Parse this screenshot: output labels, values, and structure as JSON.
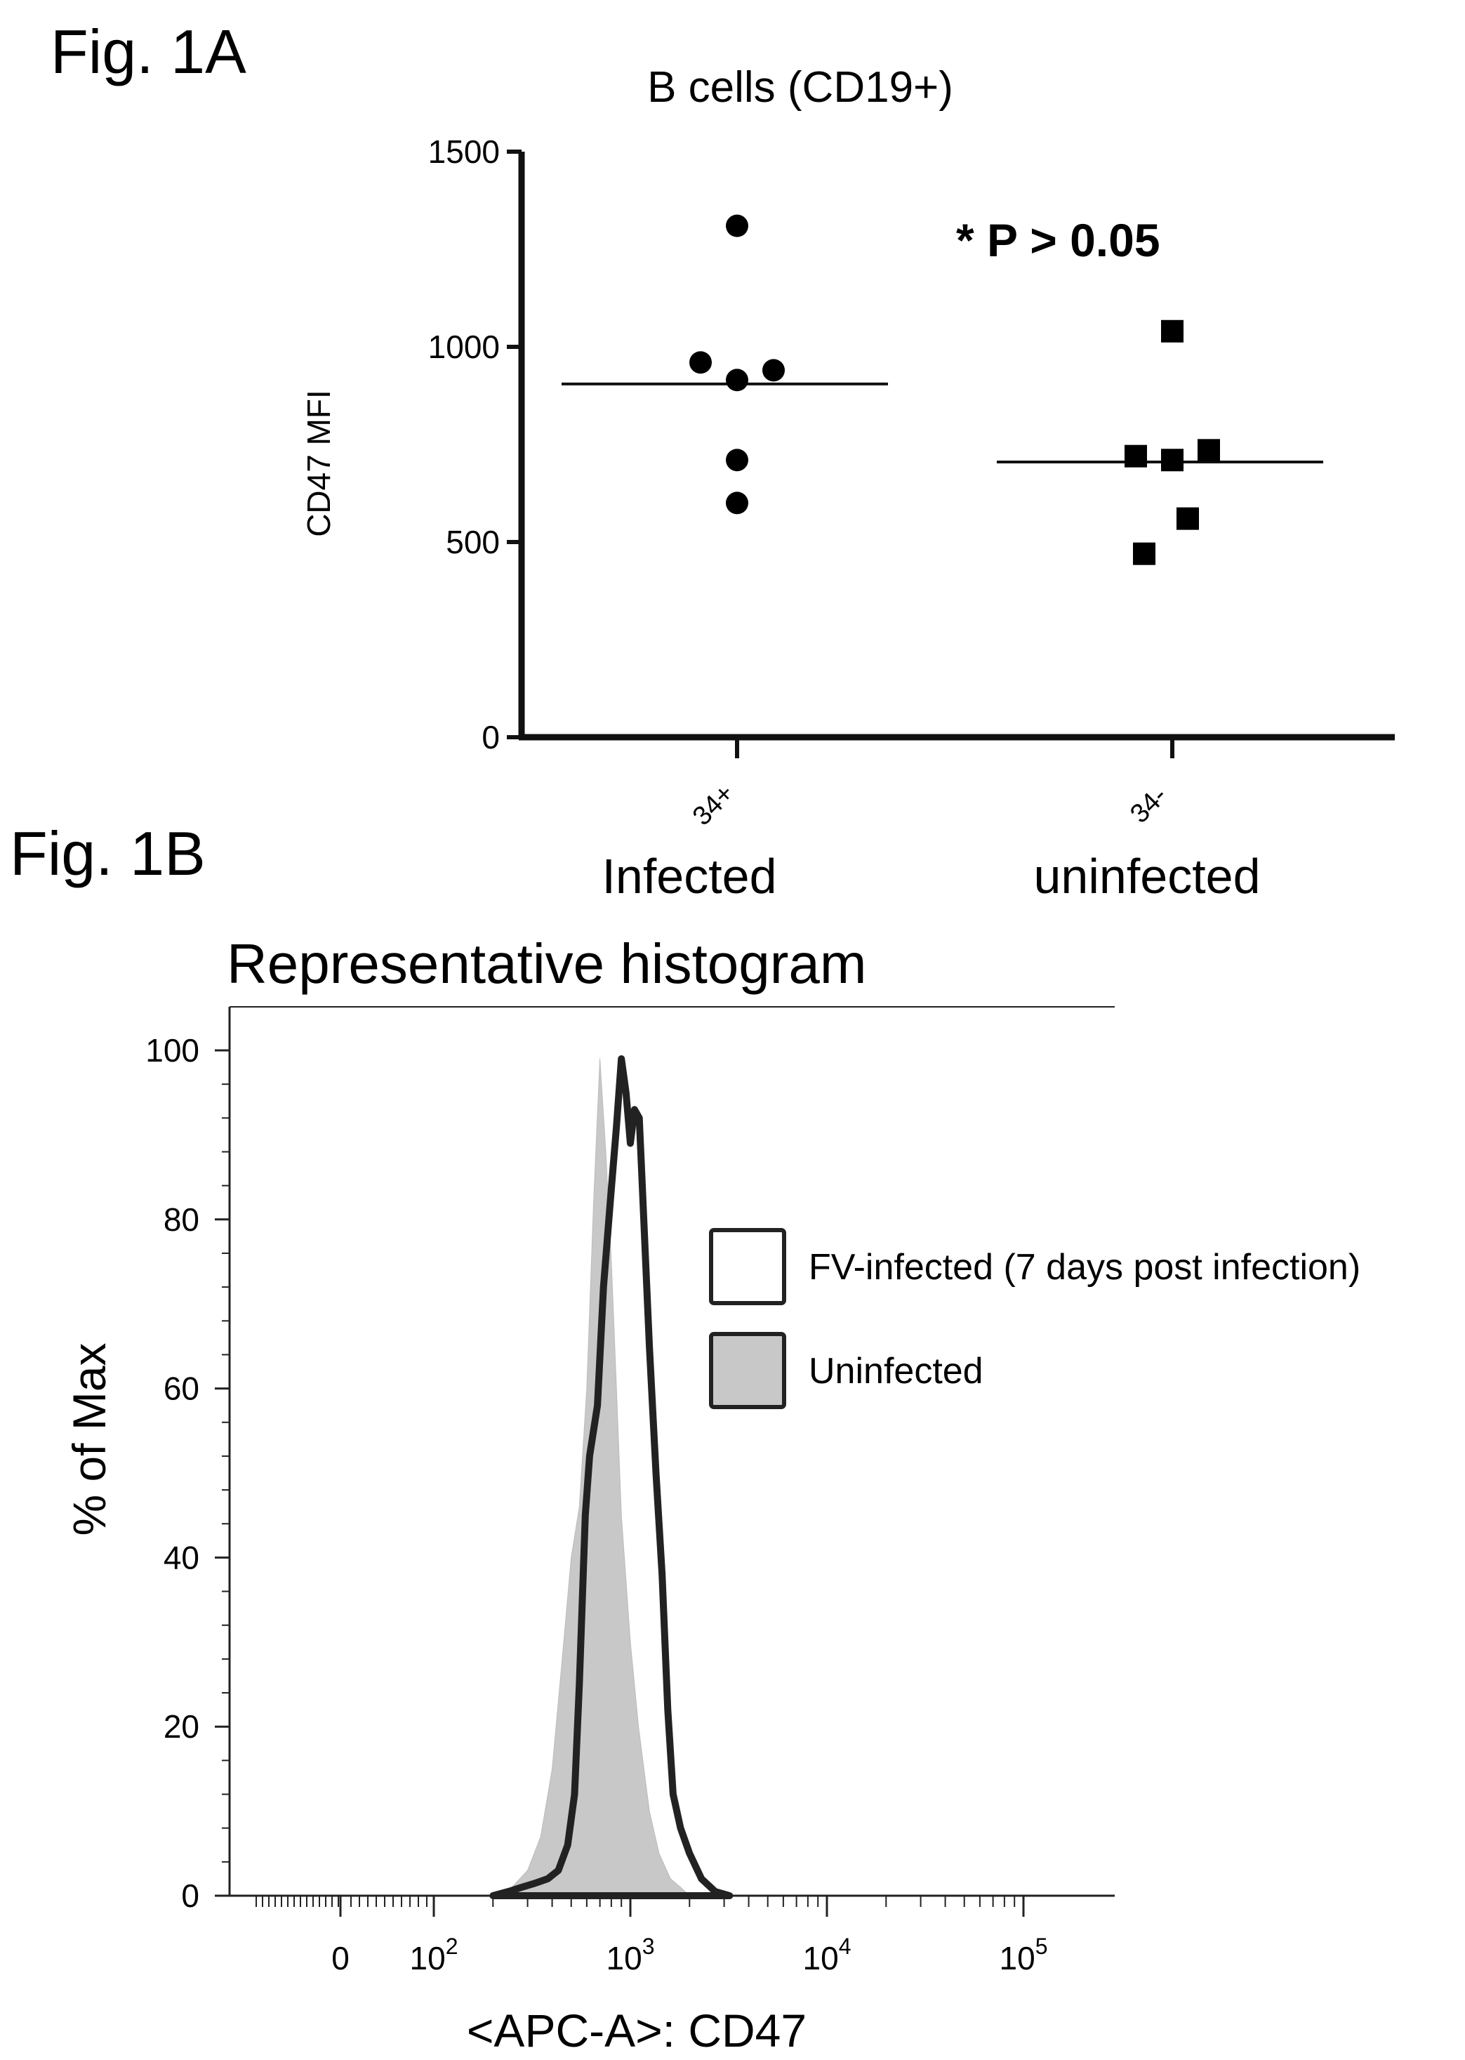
{
  "figure": {
    "fig1a_label": "Fig. 1A",
    "fig1b_label": "Fig. 1B"
  },
  "chart_data": [
    {
      "type": "scatter",
      "title": "B cells (CD19+)",
      "ylabel": "CD47 MFI",
      "xlabel": "",
      "ylim": [
        0,
        1500
      ],
      "yticks": [
        "0",
        "500",
        "1000",
        "1500"
      ],
      "annotation": "* P > 0.05",
      "categories": [
        "34+",
        "34-"
      ],
      "group_labels": [
        "Infected",
        "uninfected"
      ],
      "series": [
        {
          "category": "34+",
          "marker": "circle",
          "values": [
            1310,
            960,
            940,
            915,
            710,
            600
          ],
          "median": 905
        },
        {
          "category": "34-",
          "marker": "square",
          "values": [
            1040,
            735,
            720,
            710,
            560,
            470
          ],
          "median": 705
        }
      ]
    },
    {
      "type": "area",
      "title": "Representative histogram",
      "ylabel": "% of Max",
      "xlabel": "<APC-A>: CD47",
      "ylim": [
        0,
        100
      ],
      "x_scale": "biexponential",
      "yticks": [
        "0",
        "20",
        "40",
        "60",
        "80",
        "100"
      ],
      "xticks": [
        {
          "base": "0",
          "exp": ""
        },
        {
          "base": "10",
          "exp": "2"
        },
        {
          "base": "10",
          "exp": "3"
        },
        {
          "base": "10",
          "exp": "4"
        },
        {
          "base": "10",
          "exp": "5"
        }
      ],
      "legend_position": "right",
      "series": [
        {
          "name": "FV-infected (7 days post infection)",
          "fill": "#ffffff",
          "stroke": "#222222",
          "points": [
            [
              200,
              0
            ],
            [
              240,
              0.5
            ],
            [
              280,
              1
            ],
            [
              330,
              1.5
            ],
            [
              380,
              2
            ],
            [
              430,
              3
            ],
            [
              480,
              6
            ],
            [
              520,
              12
            ],
            [
              550,
              25
            ],
            [
              590,
              45
            ],
            [
              620,
              52
            ],
            [
              680,
              58
            ],
            [
              730,
              72
            ],
            [
              790,
              82
            ],
            [
              850,
              91
            ],
            [
              900,
              99
            ],
            [
              950,
              95
            ],
            [
              1000,
              89
            ],
            [
              1050,
              93
            ],
            [
              1110,
              92
            ],
            [
              1170,
              80
            ],
            [
              1250,
              65
            ],
            [
              1350,
              50
            ],
            [
              1450,
              38
            ],
            [
              1550,
              22
            ],
            [
              1650,
              12
            ],
            [
              1800,
              8
            ],
            [
              2000,
              5
            ],
            [
              2300,
              2
            ],
            [
              2700,
              0.5
            ],
            [
              3200,
              0
            ]
          ]
        },
        {
          "name": "Uninfected",
          "fill": "#c8c8c8",
          "stroke": "#bbbbbb",
          "points": [
            [
              200,
              0
            ],
            [
              250,
              1
            ],
            [
              300,
              3
            ],
            [
              350,
              7
            ],
            [
              400,
              15
            ],
            [
              450,
              28
            ],
            [
              500,
              40
            ],
            [
              550,
              46
            ],
            [
              600,
              60
            ],
            [
              650,
              82
            ],
            [
              700,
              99
            ],
            [
              750,
              88
            ],
            [
              800,
              75
            ],
            [
              850,
              60
            ],
            [
              900,
              45
            ],
            [
              1000,
              30
            ],
            [
              1100,
              20
            ],
            [
              1250,
              10
            ],
            [
              1400,
              5
            ],
            [
              1600,
              2
            ],
            [
              1800,
              1
            ],
            [
              2000,
              0
            ]
          ]
        }
      ]
    }
  ]
}
